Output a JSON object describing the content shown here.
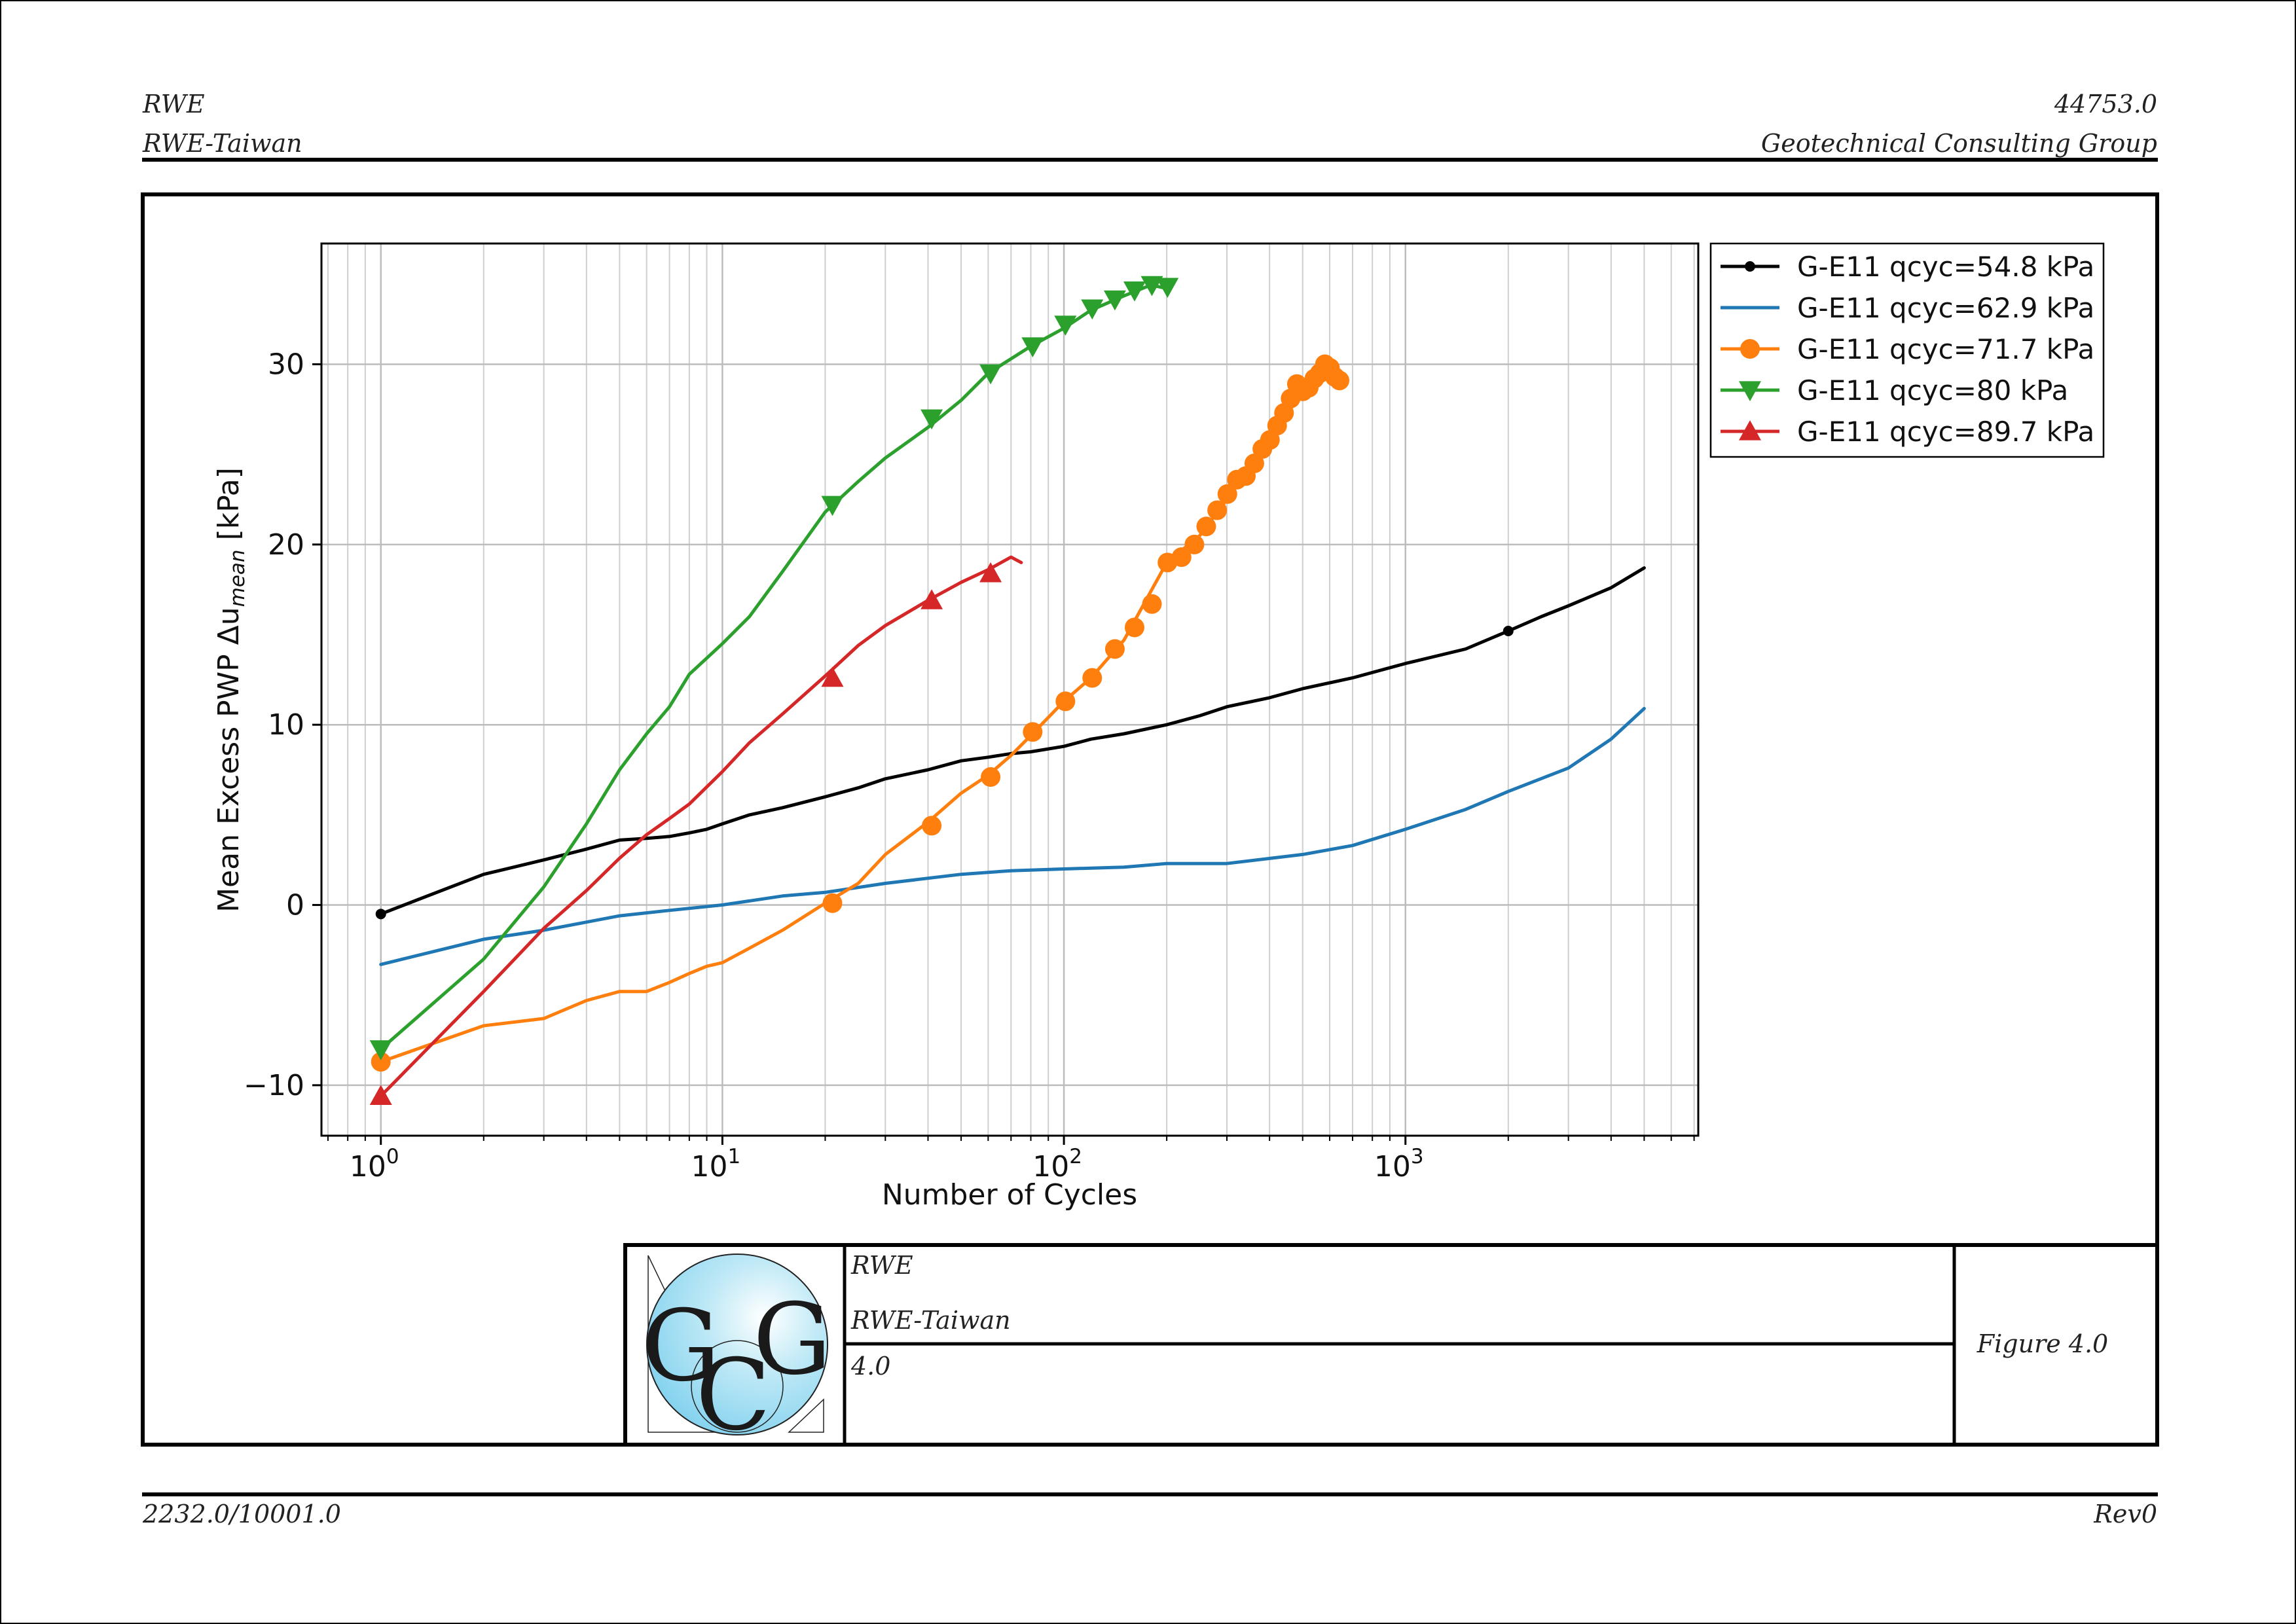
{
  "header": {
    "client": "RWE",
    "project": "RWE-Taiwan",
    "job_number": "44753.0",
    "company": "Geotechnical Consulting Group"
  },
  "footer": {
    "doc_ref": "2232.0/10001.0",
    "revision": "Rev0"
  },
  "title_block": {
    "client": "RWE",
    "project": "RWE-Taiwan",
    "figure_number": "4.0",
    "figure_label": "Figure 4.0",
    "logo_letters": [
      "G",
      "C",
      "G"
    ]
  },
  "chart_data": {
    "type": "line",
    "title": "",
    "xlabel": "Number of Cycles",
    "ylabel": "Mean Excess PWP Δu",
    "ylabel_sub": "mean",
    "ylabel_unit": " [kPa]",
    "xscale": "log",
    "xlim": [
      0.67,
      7200
    ],
    "ylim": [
      -12.8,
      36.7
    ],
    "x_ticks": [
      {
        "value": 1,
        "base": "10",
        "exp": "0"
      },
      {
        "value": 10,
        "base": "10",
        "exp": "1"
      },
      {
        "value": 100,
        "base": "10",
        "exp": "2"
      },
      {
        "value": 1000,
        "base": "10",
        "exp": "3"
      }
    ],
    "y_ticks": [
      -10,
      0,
      10,
      20,
      30
    ],
    "y_tick_labels": [
      "−10",
      "0",
      "10",
      "20",
      "30"
    ],
    "grid": true,
    "legend_position": "outside-top-right",
    "series": [
      {
        "name": "G-E11 qcyc=54.8 kPa",
        "color": "#000000",
        "marker": "point",
        "x": [
          1,
          2,
          3,
          4,
          5,
          6,
          7,
          8,
          9,
          10,
          12,
          15,
          20,
          25,
          30,
          40,
          50,
          60,
          70,
          80,
          100,
          120,
          150,
          200,
          250,
          300,
          400,
          500,
          700,
          1000,
          1500,
          2000,
          2500,
          3000,
          4000,
          5000
        ],
        "y": [
          -0.5,
          1.7,
          2.5,
          3.1,
          3.6,
          3.7,
          3.8,
          4.0,
          4.2,
          4.5,
          5.0,
          5.4,
          6.0,
          6.5,
          7.0,
          7.5,
          8.0,
          8.2,
          8.4,
          8.5,
          8.8,
          9.2,
          9.5,
          10.0,
          10.5,
          11.0,
          11.5,
          12.0,
          12.6,
          13.4,
          14.2,
          15.2,
          16.0,
          16.6,
          17.6,
          18.7
        ],
        "marker_x": [
          1,
          2000
        ],
        "marker_y": [
          -0.5,
          15.2
        ]
      },
      {
        "name": "G-E11 qcyc=62.9 kPa",
        "color": "#1f77b4",
        "marker": "none",
        "x": [
          1,
          2,
          3,
          5,
          7,
          10,
          15,
          20,
          30,
          50,
          70,
          100,
          150,
          200,
          300,
          500,
          700,
          1000,
          1500,
          2000,
          3000,
          4000,
          5000
        ],
        "y": [
          -3.3,
          -1.9,
          -1.4,
          -0.6,
          -0.3,
          0.0,
          0.5,
          0.7,
          1.2,
          1.7,
          1.9,
          2.0,
          2.1,
          2.3,
          2.3,
          2.8,
          3.3,
          4.2,
          5.3,
          6.3,
          7.6,
          9.2,
          10.9
        ]
      },
      {
        "name": "G-E11 qcyc=71.7 kPa",
        "color": "#ff7f0e",
        "marker": "circle",
        "x": [
          1,
          2,
          3,
          4,
          5,
          6,
          7,
          8,
          9,
          10,
          12,
          15,
          20,
          25,
          30,
          40,
          50,
          60,
          70,
          80,
          100,
          120,
          150,
          200,
          250,
          300,
          400,
          500,
          550,
          600,
          650
        ],
        "y": [
          -8.7,
          -6.7,
          -6.3,
          -5.3,
          -4.8,
          -4.8,
          -4.3,
          -3.8,
          -3.4,
          -3.2,
          -2.4,
          -1.4,
          0.1,
          1.2,
          2.8,
          4.6,
          6.2,
          7.2,
          8.3,
          9.4,
          11.3,
          12.6,
          14.7,
          19.0,
          20.5,
          22.5,
          25.8,
          28.5,
          29.6,
          29.5,
          29.2
        ],
        "marker_x": [
          1,
          21,
          41,
          61,
          81,
          101,
          121,
          141,
          161,
          181,
          201,
          221,
          241,
          261,
          281,
          301,
          321,
          341,
          361,
          381,
          401,
          421,
          441,
          461,
          481,
          501,
          521,
          541,
          561,
          581,
          601,
          621,
          641
        ],
        "marker_y": [
          -8.7,
          0.1,
          4.4,
          7.1,
          9.6,
          11.3,
          12.6,
          14.2,
          15.4,
          16.7,
          19.0,
          19.3,
          20.0,
          21.0,
          21.9,
          22.8,
          23.6,
          23.8,
          24.5,
          25.3,
          25.8,
          26.6,
          27.3,
          28.1,
          28.9,
          28.5,
          28.7,
          29.2,
          29.5,
          30.0,
          29.8,
          29.3,
          29.1
        ]
      },
      {
        "name": "G-E11 qcyc=80 kPa",
        "color": "#2ca02c",
        "marker": "triangle-down",
        "x": [
          1,
          2,
          3,
          4,
          5,
          6,
          7,
          8,
          10,
          12,
          15,
          20,
          25,
          30,
          40,
          50,
          60,
          80,
          100,
          120,
          150,
          180,
          200
        ],
        "y": [
          -8.0,
          -3.0,
          1.0,
          4.5,
          7.5,
          9.5,
          11.0,
          12.8,
          14.5,
          16.0,
          18.5,
          21.8,
          23.5,
          24.8,
          26.5,
          28.0,
          29.5,
          31.0,
          32.0,
          33.0,
          33.8,
          34.4,
          34.2
        ],
        "marker_x": [
          1,
          21,
          41,
          61,
          81,
          101,
          121,
          141,
          161,
          181,
          201
        ],
        "marker_y": [
          -8.0,
          22.2,
          27.0,
          29.5,
          31.0,
          32.2,
          33.1,
          33.6,
          34.1,
          34.4,
          34.3
        ]
      },
      {
        "name": "G-E11 qcyc=89.7 kPa",
        "color": "#d62728",
        "marker": "triangle-up",
        "x": [
          1,
          2,
          3,
          4,
          5,
          6,
          7,
          8,
          10,
          12,
          15,
          20,
          25,
          30,
          40,
          50,
          60,
          70,
          75
        ],
        "y": [
          -10.6,
          -4.8,
          -1.3,
          0.8,
          2.6,
          3.9,
          4.8,
          5.6,
          7.4,
          9.0,
          10.6,
          12.7,
          14.4,
          15.5,
          16.9,
          17.9,
          18.6,
          19.3,
          19.0
        ],
        "marker_x": [
          1,
          21,
          41,
          61
        ],
        "marker_y": [
          -10.6,
          12.6,
          16.9,
          18.4
        ]
      }
    ]
  }
}
